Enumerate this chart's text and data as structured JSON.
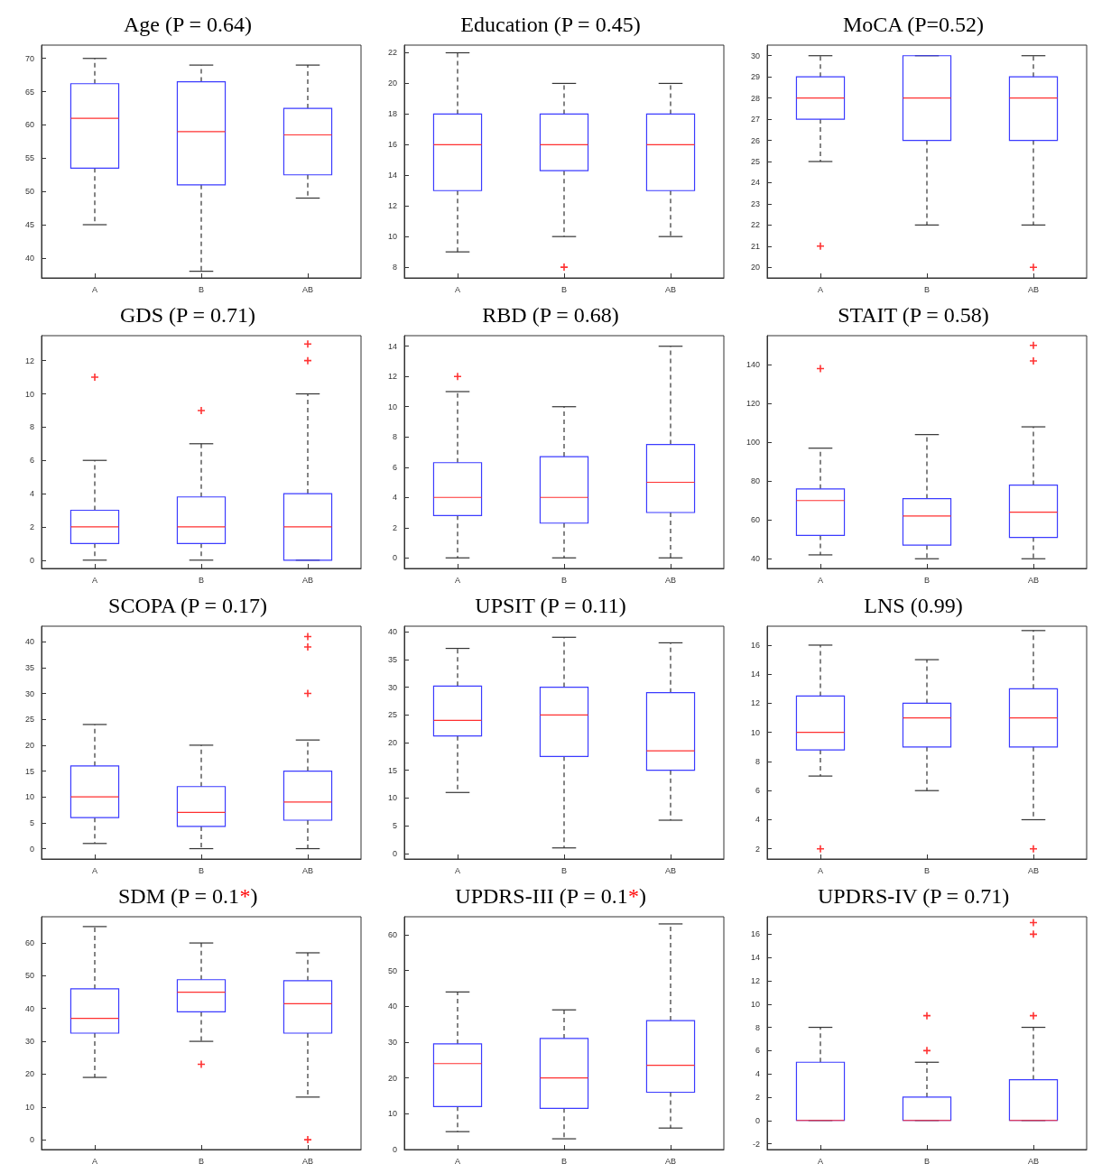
{
  "chart_data": [
    {
      "type": "box",
      "title": "Age (P = 0.64)",
      "categories": [
        "A",
        "B",
        "AB"
      ],
      "ylim": [
        37,
        72
      ],
      "yticks": [
        40,
        45,
        50,
        55,
        60,
        65,
        70
      ],
      "marker": "cross",
      "series": [
        {
          "color": "#3b3bff",
          "boxes": [
            {
              "low": 45,
              "q1": 53.5,
              "median": 61,
              "q3": 66.2,
              "high": 70
            },
            {
              "low": 38,
              "q1": 51,
              "median": 59,
              "q3": 66.5,
              "high": 69
            },
            {
              "low": 49,
              "q1": 52.5,
              "median": 58.5,
              "q3": 62.5,
              "high": 69
            }
          ]
        }
      ]
    },
    {
      "type": "box",
      "title": "Education (P = 0.45)",
      "categories": [
        "A",
        "B",
        "AB"
      ],
      "ylim": [
        7.3,
        22.5
      ],
      "yticks": [
        8,
        10,
        12,
        14,
        16,
        18,
        20,
        22
      ],
      "marker": "cross",
      "series": [
        {
          "color": "#3b3bff",
          "boxes": [
            {
              "low": 9,
              "q1": 13,
              "median": 16,
              "q3": 18,
              "high": 22
            },
            {
              "low": 10,
              "q1": 14.3,
              "median": 16,
              "q3": 18,
              "high": 20,
              "outliers": [
                8
              ]
            },
            {
              "low": 10,
              "q1": 13,
              "median": 16,
              "q3": 18,
              "high": 20
            }
          ]
        }
      ]
    },
    {
      "type": "box",
      "title": "MoCA (P=0.52)",
      "categories": [
        "A",
        "B",
        "AB"
      ],
      "ylim": [
        19.5,
        30.5
      ],
      "yticks": [
        20,
        21,
        22,
        23,
        24,
        25,
        26,
        27,
        28,
        29,
        30
      ],
      "marker": "cross",
      "series": [
        {
          "color": "#3b3bff",
          "boxes": [
            {
              "low": 25,
              "q1": 27,
              "median": 28,
              "q3": 29,
              "high": 30,
              "outliers": [
                21
              ]
            },
            {
              "low": 22,
              "q1": 26,
              "median": 28,
              "q3": 30,
              "high": 30
            },
            {
              "low": 22,
              "q1": 26,
              "median": 28,
              "q3": 29,
              "high": 30,
              "outliers": [
                20
              ]
            }
          ]
        }
      ]
    },
    {
      "type": "box",
      "title": "GDS (P = 0.71)",
      "categories": [
        "A",
        "B",
        "AB"
      ],
      "ylim": [
        -0.5,
        13.5
      ],
      "yticks": [
        0,
        2,
        4,
        6,
        8,
        10,
        12
      ],
      "marker": "cross",
      "series": [
        {
          "color": "#3b3bff",
          "boxes": [
            {
              "low": 0,
              "q1": 1,
              "median": 2,
              "q3": 3,
              "high": 6,
              "outliers": [
                11
              ]
            },
            {
              "low": 0,
              "q1": 1,
              "median": 2,
              "q3": 3.8,
              "high": 7,
              "outliers": [
                9
              ]
            },
            {
              "low": 0,
              "q1": 0,
              "median": 2,
              "q3": 4,
              "high": 10,
              "outliers": [
                12,
                13
              ]
            }
          ]
        }
      ]
    },
    {
      "type": "box",
      "title": "RBD (P = 0.68)",
      "categories": [
        "A",
        "B",
        "AB"
      ],
      "ylim": [
        -0.7,
        14.7
      ],
      "yticks": [
        0,
        2,
        4,
        6,
        8,
        10,
        12,
        14
      ],
      "marker": "cross",
      "series": [
        {
          "color": "#3b3bff",
          "boxes": [
            {
              "low": 0,
              "q1": 2.8,
              "median": 4,
              "q3": 6.3,
              "high": 11,
              "outliers": [
                12
              ]
            },
            {
              "low": 0,
              "q1": 2.3,
              "median": 4,
              "q3": 6.7,
              "high": 10
            },
            {
              "low": 0,
              "q1": 3,
              "median": 5,
              "q3": 7.5,
              "high": 14
            }
          ]
        }
      ]
    },
    {
      "type": "box",
      "title": "STAIT (P = 0.58)",
      "categories": [
        "A",
        "B",
        "AB"
      ],
      "ylim": [
        35,
        155
      ],
      "yticks": [
        40,
        60,
        80,
        100,
        120,
        140
      ],
      "marker": "cross",
      "series": [
        {
          "color": "#3b3bff",
          "boxes": [
            {
              "low": 42,
              "q1": 52,
              "median": 70,
              "q3": 76,
              "high": 97,
              "outliers": [
                138
              ]
            },
            {
              "low": 40,
              "q1": 47,
              "median": 62,
              "q3": 71,
              "high": 104
            },
            {
              "low": 40,
              "q1": 51,
              "median": 64,
              "q3": 78,
              "high": 108,
              "outliers": [
                142,
                150
              ]
            }
          ]
        }
      ]
    },
    {
      "type": "box",
      "title": "SCOPA (P = 0.17)",
      "categories": [
        "A",
        "B",
        "AB"
      ],
      "ylim": [
        -2,
        43
      ],
      "yticks": [
        0,
        5,
        10,
        15,
        20,
        25,
        30,
        35,
        40
      ],
      "marker": "cross",
      "series": [
        {
          "color": "#3b3bff",
          "boxes": [
            {
              "low": 1,
              "q1": 6,
              "median": 10,
              "q3": 16,
              "high": 24
            },
            {
              "low": 0,
              "q1": 4.3,
              "median": 7,
              "q3": 12,
              "high": 20
            },
            {
              "low": 0,
              "q1": 5.5,
              "median": 9,
              "q3": 15,
              "high": 21,
              "outliers": [
                30,
                39,
                41
              ]
            }
          ]
        }
      ]
    },
    {
      "type": "box",
      "title": "UPSIT (P = 0.11)",
      "categories": [
        "A",
        "B",
        "AB"
      ],
      "ylim": [
        -1,
        41
      ],
      "yticks": [
        0,
        5,
        10,
        15,
        20,
        25,
        30,
        35,
        40
      ],
      "marker": "cross",
      "series": [
        {
          "color": "#3b3bff",
          "boxes": [
            {
              "low": 11,
              "q1": 21.2,
              "median": 24,
              "q3": 30.2,
              "high": 37
            },
            {
              "low": 1,
              "q1": 17.5,
              "median": 25,
              "q3": 30,
              "high": 39
            },
            {
              "low": 6,
              "q1": 15,
              "median": 18.5,
              "q3": 29,
              "high": 38
            }
          ]
        }
      ]
    },
    {
      "type": "box",
      "title": "LNS (0.99)",
      "categories": [
        "A",
        "B",
        "AB"
      ],
      "ylim": [
        1.3,
        17.3
      ],
      "yticks": [
        2,
        4,
        6,
        8,
        10,
        12,
        14,
        16
      ],
      "marker": "cross",
      "series": [
        {
          "color": "#3b3bff",
          "boxes": [
            {
              "low": 7,
              "q1": 8.8,
              "median": 10,
              "q3": 12.5,
              "high": 16,
              "outliers": [
                2
              ]
            },
            {
              "low": 6,
              "q1": 9,
              "median": 11,
              "q3": 12,
              "high": 15
            },
            {
              "low": 4,
              "q1": 9,
              "median": 11,
              "q3": 13,
              "high": 17,
              "outliers": [
                2
              ]
            }
          ]
        }
      ]
    },
    {
      "type": "box",
      "title": "SDM (P = 0.1*)",
      "categories": [
        "A",
        "B",
        "AB"
      ],
      "ylim": [
        -3,
        68
      ],
      "yticks": [
        0,
        10,
        20,
        30,
        40,
        50,
        60
      ],
      "marker": "cross",
      "series": [
        {
          "color": "#3b3bff",
          "boxes": [
            {
              "low": 19,
              "q1": 32.5,
              "median": 37,
              "q3": 46,
              "high": 65
            },
            {
              "low": 30,
              "q1": 39,
              "median": 45,
              "q3": 48.8,
              "high": 60,
              "outliers": [
                23
              ]
            },
            {
              "low": 13,
              "q1": 32.5,
              "median": 41.5,
              "q3": 48.5,
              "high": 57,
              "outliers": [
                0
              ]
            }
          ]
        }
      ]
    },
    {
      "type": "box",
      "title": "UPDRS-III (P = 0.1*)",
      "categories": [
        "A",
        "B",
        "AB"
      ],
      "ylim": [
        0,
        65
      ],
      "yticks": [
        0,
        10,
        20,
        30,
        40,
        50,
        60
      ],
      "marker": "cross",
      "series": [
        {
          "color": "#3b3bff",
          "boxes": [
            {
              "low": 5,
              "q1": 12,
              "median": 24,
              "q3": 29.5,
              "high": 44
            },
            {
              "low": 3,
              "q1": 11.5,
              "median": 20,
              "q3": 31,
              "high": 39
            },
            {
              "low": 6,
              "q1": 16,
              "median": 23.5,
              "q3": 36,
              "high": 63
            }
          ]
        }
      ]
    },
    {
      "type": "box",
      "title": "UPDRS-IV (P = 0.71)",
      "categories": [
        "A",
        "B",
        "AB"
      ],
      "ylim": [
        -2.5,
        17.5
      ],
      "yticks": [
        -2,
        0,
        2,
        4,
        6,
        8,
        10,
        12,
        14,
        16
      ],
      "marker": "cross",
      "series": [
        {
          "color": "#3b3bff",
          "boxes": [
            {
              "low": 0,
              "q1": 0,
              "median": 0,
              "q3": 5,
              "high": 8
            },
            {
              "low": 0,
              "q1": 0,
              "median": 0,
              "q3": 2,
              "high": 5,
              "outliers": [
                6,
                9
              ]
            },
            {
              "low": 0,
              "q1": 0,
              "median": 0,
              "q3": 3.5,
              "high": 8,
              "outliers": [
                9,
                16,
                17
              ]
            }
          ]
        }
      ]
    }
  ]
}
